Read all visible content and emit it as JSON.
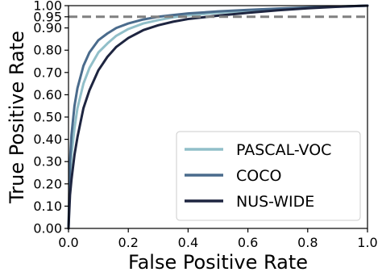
{
  "chart_data": {
    "type": "line",
    "xlabel": "False Positive Rate",
    "ylabel": "True Positive Rate",
    "xlim": [
      0,
      1
    ],
    "ylim": [
      0,
      1
    ],
    "x_ticks": [
      "0.0",
      "0.2",
      "0.4",
      "0.6",
      "0.8",
      "1.0"
    ],
    "y_ticks": [
      0,
      0.1,
      0.2,
      0.3,
      0.4,
      0.5,
      0.6,
      0.7,
      0.8,
      0.9,
      0.95,
      1.0
    ],
    "y_tick_labels": [
      "0.00",
      "0.10",
      "0.20",
      "0.30",
      "0.40",
      "0.50",
      "0.60",
      "0.70",
      "0.80",
      "0.90",
      "0.95",
      "1.00"
    ],
    "reference_line": {
      "y": 0.95,
      "style": "dashed",
      "color": "#808080"
    },
    "grid": false,
    "legend": {
      "placement": "lower-right"
    },
    "series": [
      {
        "name": "PASCAL-VOC",
        "color": "#91bfc9",
        "x": [
          0,
          0.005,
          0.01,
          0.02,
          0.03,
          0.05,
          0.07,
          0.1,
          0.13,
          0.16,
          0.2,
          0.25,
          0.3,
          0.35,
          0.4,
          0.5,
          0.6,
          0.7,
          0.8,
          0.9,
          1.0
        ],
        "y": [
          0,
          0.22,
          0.33,
          0.45,
          0.54,
          0.65,
          0.72,
          0.79,
          0.83,
          0.865,
          0.895,
          0.92,
          0.935,
          0.948,
          0.956,
          0.968,
          0.977,
          0.985,
          0.991,
          0.996,
          1.0
        ]
      },
      {
        "name": "COCO",
        "color": "#4a6b8c",
        "x": [
          0,
          0.005,
          0.01,
          0.02,
          0.03,
          0.05,
          0.07,
          0.1,
          0.13,
          0.16,
          0.2,
          0.25,
          0.3,
          0.35,
          0.4,
          0.5,
          0.6,
          0.7,
          0.8,
          0.9,
          1.0
        ],
        "y": [
          0,
          0.3,
          0.42,
          0.55,
          0.63,
          0.73,
          0.79,
          0.845,
          0.875,
          0.9,
          0.92,
          0.938,
          0.95,
          0.958,
          0.965,
          0.974,
          0.981,
          0.987,
          0.992,
          0.996,
          1.0
        ]
      },
      {
        "name": "NUS-WIDE",
        "color": "#1e2540",
        "x": [
          0,
          0.005,
          0.01,
          0.02,
          0.03,
          0.05,
          0.07,
          0.1,
          0.13,
          0.16,
          0.2,
          0.25,
          0.3,
          0.35,
          0.4,
          0.5,
          0.6,
          0.7,
          0.8,
          0.9,
          1.0
        ],
        "y": [
          0,
          0.15,
          0.22,
          0.33,
          0.41,
          0.54,
          0.62,
          0.71,
          0.77,
          0.815,
          0.855,
          0.89,
          0.912,
          0.928,
          0.94,
          0.955,
          0.968,
          0.979,
          0.988,
          0.995,
          1.0
        ]
      }
    ]
  }
}
